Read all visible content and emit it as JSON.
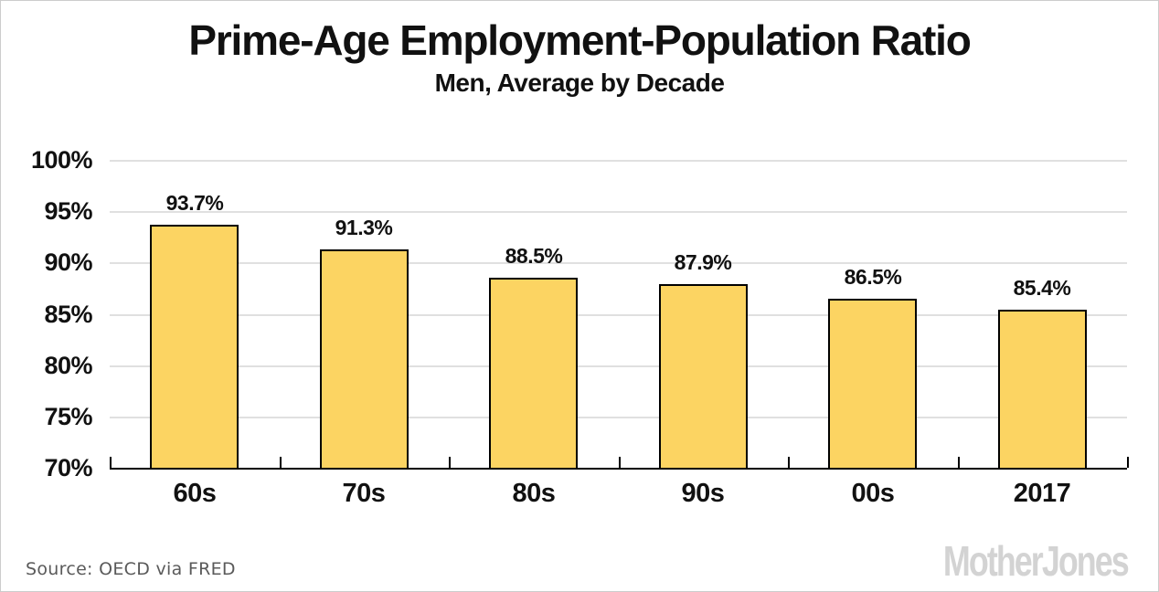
{
  "header": {
    "title": "Prime-Age Employment-Population Ratio",
    "subtitle": "Men, Average by Decade"
  },
  "chart_data": {
    "type": "bar",
    "title": "Prime-Age Employment-Population Ratio",
    "subtitle": "Men, Average by Decade",
    "categories": [
      "60s",
      "70s",
      "80s",
      "90s",
      "00s",
      "2017"
    ],
    "values": [
      93.7,
      91.3,
      88.5,
      87.9,
      86.5,
      85.4
    ],
    "value_labels": [
      "93.7%",
      "91.3%",
      "88.5%",
      "87.9%",
      "86.5%",
      "85.4%"
    ],
    "xlabel": "",
    "ylabel": "",
    "ylim": [
      70,
      100
    ],
    "ytick_step": 5,
    "ytick_labels": [
      "100%",
      "95%",
      "90%",
      "85%",
      "80%",
      "75%",
      "70%"
    ],
    "grid": "horizontal",
    "legend": "none",
    "bar_color": "#fcd462",
    "bar_border_color": "#000000",
    "gridline_color": "#e0e0e0"
  },
  "footer": {
    "source": "Source: OECD via FRED",
    "brand": "MotherJones"
  }
}
